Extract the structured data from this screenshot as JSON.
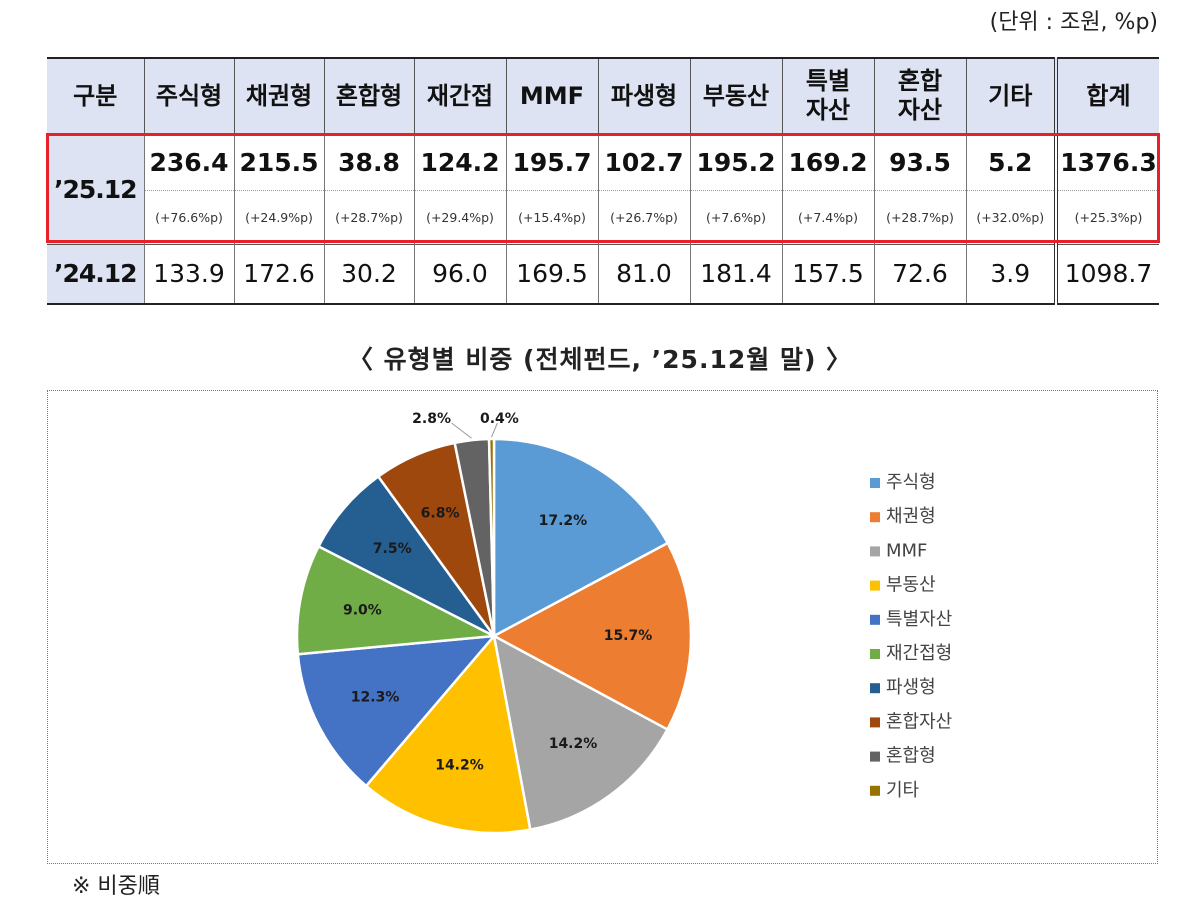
{
  "unit_note": "(단위 : 조원, %p)",
  "table": {
    "headers": [
      "구분",
      "주식형",
      "채권형",
      "혼합형",
      "재간접",
      "MMF",
      "파생형",
      "부동산",
      "특별\n자산",
      "혼합\n자산",
      "기타",
      "합계"
    ],
    "row_2512": {
      "label": "’25.12",
      "values": [
        "236.4",
        "215.5",
        "38.8",
        "124.2",
        "195.7",
        "102.7",
        "195.2",
        "169.2",
        "93.5",
        "5.2",
        "1376.3"
      ],
      "changes": [
        "(+76.6%p)",
        "(+24.9%p)",
        "(+28.7%p)",
        "(+29.4%p)",
        "(+15.4%p)",
        "(+26.7%p)",
        "(+7.6%p)",
        "(+7.4%p)",
        "(+28.7%p)",
        "(+32.0%p)",
        "(+25.3%p)"
      ]
    },
    "row_2412": {
      "label": "’24.12",
      "values": [
        "133.9",
        "172.6",
        "30.2",
        "96.0",
        "169.5",
        "81.0",
        "181.4",
        "157.5",
        "72.6",
        "3.9",
        "1098.7"
      ]
    },
    "highlight_color": "#e8202a"
  },
  "subtitle": "〈  유형별  비중  (전체펀드,  ’25.12월  말)  〉",
  "chart_data": {
    "type": "pie",
    "title": "",
    "legend_position": "right",
    "slices": [
      {
        "name": "주식형",
        "value": 17.2,
        "label": "17.2%",
        "color": "#5b9bd5"
      },
      {
        "name": "채권형",
        "value": 15.7,
        "label": "15.7%",
        "color": "#ed7d31"
      },
      {
        "name": "MMF",
        "value": 14.2,
        "label": "14.2%",
        "color": "#a5a5a5"
      },
      {
        "name": "부동산",
        "value": 14.2,
        "label": "14.2%",
        "color": "#ffc000"
      },
      {
        "name": "특별자산",
        "value": 12.3,
        "label": "12.3%",
        "color": "#4472c4"
      },
      {
        "name": "재간접형",
        "value": 9.0,
        "label": "9.0%",
        "color": "#70ad47"
      },
      {
        "name": "파생형",
        "value": 7.5,
        "label": "7.5%",
        "color": "#255e91"
      },
      {
        "name": "혼합자산",
        "value": 6.8,
        "label": "6.8%",
        "color": "#9e480e"
      },
      {
        "name": "혼합형",
        "value": 2.8,
        "label": "2.8%",
        "color": "#636363"
      },
      {
        "name": "기타",
        "value": 0.4,
        "label": "0.4%",
        "color": "#997300"
      }
    ]
  },
  "footnote": "※  비중順"
}
